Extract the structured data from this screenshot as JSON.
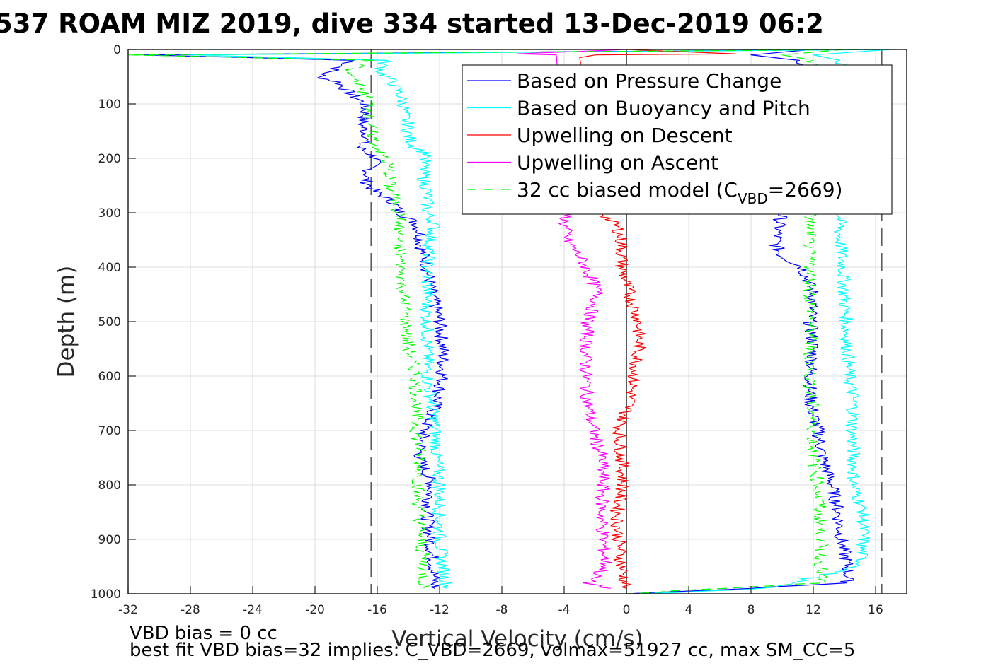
{
  "chart_data": {
    "type": "line",
    "title": "537 ROAM MIZ 2019, dive 334 started 13-Dec-2019 06:2",
    "xlabel": "Vertical Velocity (cm/s)",
    "ylabel": "Depth (m)",
    "xlim": [
      -32,
      18
    ],
    "ylim": [
      0,
      1000
    ],
    "y_reversed": true,
    "grid": true,
    "xticks": [
      -32,
      -28,
      -24,
      -20,
      -16,
      -12,
      -8,
      -4,
      0,
      4,
      8,
      12,
      16
    ],
    "xtick_labels": [
      "-32",
      "-28",
      "-24",
      "-20",
      "-16",
      "-12",
      "-8",
      "-4",
      "0",
      "4",
      "8",
      "12",
      "16"
    ],
    "yticks": [
      0,
      100,
      200,
      300,
      400,
      500,
      600,
      700,
      800,
      900,
      1000
    ],
    "ytick_labels": [
      "0",
      "100",
      "200",
      "300",
      "400",
      "500",
      "600",
      "700",
      "800",
      "900",
      "1000"
    ],
    "legend_position": "top-right",
    "legend": [
      {
        "label": "Based on Pressure Change",
        "color": "#0000ff",
        "style": "solid"
      },
      {
        "label": "Based on Buoyancy and Pitch",
        "color": "#00ffff",
        "style": "solid"
      },
      {
        "label": "Upwelling on Descent",
        "color": "#ff0000",
        "style": "solid"
      },
      {
        "label": "Upwelling on Ascent",
        "color": "#ff00ff",
        "style": "solid"
      },
      {
        "label": "32 cc biased model (C",
        "label_sub": "VBD",
        "label_after": "=2669)",
        "color": "#00ff00",
        "style": "dashed"
      }
    ],
    "reference_lines": [
      {
        "x": -16.4,
        "style": "dashed",
        "color": "#000000"
      },
      {
        "x": 16.4,
        "style": "dashed",
        "color": "#000000"
      },
      {
        "x": 0,
        "style": "solid",
        "color": "#000000"
      }
    ],
    "series": [
      {
        "name": "Based on Pressure Change (descent)",
        "color": "#0000ff",
        "depth": [
          0,
          10,
          20,
          40,
          50,
          60,
          80,
          100,
          120,
          140,
          160,
          180,
          200,
          220,
          240,
          260,
          280,
          300,
          320,
          340,
          360,
          380,
          400,
          450,
          500,
          550,
          600,
          650,
          700,
          750,
          800,
          850,
          900,
          950,
          990
        ],
        "values": [
          16,
          -31,
          -17.5,
          -19,
          -19.8,
          -18.5,
          -17.8,
          -16.8,
          -16.8,
          -17,
          -16.6,
          -17.2,
          -16,
          -16.5,
          -16.8,
          -16.2,
          -15,
          -14.5,
          -13.5,
          -13.2,
          -13.2,
          -13,
          -12.8,
          -12.5,
          -12,
          -11.8,
          -11.8,
          -12.2,
          -13,
          -13.3,
          -12.5,
          -12.8,
          -12.6,
          -12.4,
          -12.3
        ]
      },
      {
        "name": "Based on Pressure Change (ascent)",
        "color": "#0000ff",
        "depth": [
          0,
          10,
          20,
          300,
          320,
          340,
          360,
          380,
          400,
          450,
          500,
          550,
          600,
          650,
          700,
          750,
          800,
          850,
          900,
          950,
          980,
          990,
          1000
        ],
        "values": [
          12,
          8,
          11,
          10,
          9.8,
          9.7,
          9.6,
          10,
          11.3,
          12,
          11.8,
          12,
          11.8,
          11.8,
          12.3,
          12.6,
          13.2,
          13.6,
          13.8,
          14.2,
          14.2,
          8,
          0
        ]
      },
      {
        "name": "Based on Buoyancy and Pitch (descent)",
        "color": "#00ffff",
        "depth": [
          0,
          10,
          20,
          40,
          60,
          80,
          100,
          120,
          140,
          160,
          180,
          195,
          200,
          220,
          240,
          260,
          300,
          320,
          350,
          400,
          450,
          500,
          550,
          600,
          650,
          700,
          750,
          800,
          850,
          900,
          950,
          990
        ],
        "values": [
          17,
          -28,
          -15.5,
          -15.8,
          -15,
          -14.6,
          -14.3,
          -14.3,
          -14,
          -14,
          -13.6,
          -12.5,
          -13,
          -13,
          -13,
          -12.8,
          -12.8,
          -12.3,
          -12.6,
          -12.8,
          -12.8,
          -12.8,
          -12.8,
          -12.8,
          -12.5,
          -12.3,
          -12.2,
          -12,
          -12,
          -12,
          -11.8,
          -11.5
        ]
      },
      {
        "name": "Based on Buoyancy and Pitch (ascent)",
        "color": "#00ffff",
        "depth": [
          0,
          10,
          20,
          300,
          350,
          400,
          450,
          500,
          550,
          600,
          650,
          700,
          750,
          800,
          850,
          900,
          950,
          990,
          1000
        ],
        "values": [
          17,
          12,
          13.7,
          13.7,
          13.7,
          13.9,
          14,
          14.1,
          14.2,
          14.3,
          14.6,
          14.5,
          14.6,
          14.6,
          15.2,
          15.2,
          15,
          9,
          1
        ]
      },
      {
        "name": "Upwelling on Descent",
        "color": "#ff0000",
        "depth": [
          0,
          8,
          10,
          15,
          300,
          330,
          360,
          380,
          400,
          450,
          500,
          550,
          600,
          650,
          700,
          750,
          800,
          850,
          900,
          950,
          990
        ],
        "values": [
          0,
          7,
          -2,
          -3,
          -1.5,
          -0.5,
          -0.3,
          -0.3,
          -0.3,
          0.2,
          0.8,
          0.8,
          0.5,
          0.2,
          -0.5,
          -0.3,
          -0.2,
          -0.6,
          -0.5,
          -0.3,
          0
        ]
      },
      {
        "name": "Upwelling on Ascent",
        "color": "#ff00ff",
        "depth": [
          0,
          8,
          10,
          300,
          320,
          350,
          380,
          400,
          450,
          500,
          550,
          600,
          650,
          700,
          750,
          800,
          850,
          900,
          950,
          980,
          990
        ],
        "values": [
          0,
          -7,
          -4.5,
          -3.8,
          -4,
          -3.8,
          -3,
          -2.6,
          -1.8,
          -2.5,
          -2.6,
          -2.6,
          -2.5,
          -2.1,
          -1.6,
          -1.5,
          -1.6,
          -1.5,
          -1.3,
          -2.5,
          -1
        ]
      },
      {
        "name": "32 cc biased model (descent)",
        "color": "#00ff00",
        "dashed": true,
        "depth": [
          0,
          10,
          20,
          40,
          60,
          80,
          100,
          120,
          140,
          160,
          180,
          200,
          220,
          250,
          280,
          300,
          350,
          400,
          450,
          500,
          550,
          600,
          650,
          700,
          750,
          800,
          850,
          900,
          950,
          990
        ],
        "values": [
          16,
          -32,
          -16.5,
          -18,
          -17.2,
          -16.8,
          -16.5,
          -16.5,
          -16.5,
          -16.3,
          -16,
          -15.5,
          -15.2,
          -15.2,
          -14.8,
          -14.6,
          -14.6,
          -14.5,
          -14.3,
          -14.2,
          -14,
          -13.5,
          -13.5,
          -13.5,
          -13.2,
          -13.4,
          -13.3,
          -13.2,
          -13,
          -13
        ]
      },
      {
        "name": "32 cc biased model (ascent)",
        "color": "#00ff00",
        "dashed": true,
        "depth": [
          0,
          10,
          20,
          300,
          350,
          400,
          450,
          500,
          550,
          600,
          650,
          700,
          750,
          800,
          850,
          900,
          950,
          980,
          990,
          1000
        ],
        "values": [
          14,
          10,
          12,
          11.8,
          11.7,
          11.8,
          11.8,
          11.8,
          11.8,
          11.8,
          11.9,
          12,
          12,
          12.3,
          12.4,
          12.5,
          12.5,
          12.5,
          6,
          0
        ]
      }
    ]
  },
  "annotations": {
    "line1": "VBD bias = 0 cc",
    "line2": "best fit VBD bias=32 implies: C_VBD=2669, volmax=51927 cc, max SM_CC=5"
  }
}
